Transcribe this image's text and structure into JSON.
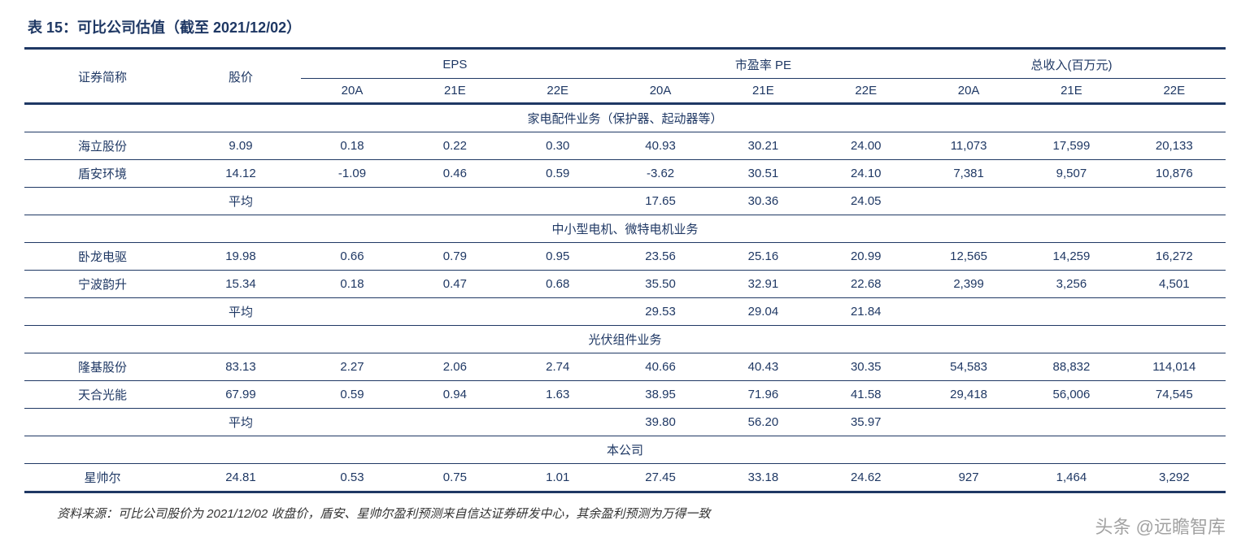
{
  "title": "表 15：可比公司估值（截至 2021/12/02）",
  "headers": {
    "name": "证券简称",
    "price": "股价",
    "eps": "EPS",
    "pe": "市盈率 PE",
    "revenue": "总收入(百万元)",
    "sub": [
      "20A",
      "21E",
      "22E"
    ]
  },
  "sections": [
    {
      "title": "家电配件业务（保护器、起动器等）",
      "rows": [
        {
          "name": "海立股份",
          "price": "9.09",
          "eps": [
            "0.18",
            "0.22",
            "0.30"
          ],
          "pe": [
            "40.93",
            "30.21",
            "24.00"
          ],
          "rev": [
            "11,073",
            "17,599",
            "20,133"
          ]
        },
        {
          "name": "盾安环境",
          "price": "14.12",
          "eps": [
            "-1.09",
            "0.46",
            "0.59"
          ],
          "pe": [
            "-3.62",
            "30.51",
            "24.10"
          ],
          "rev": [
            "7,381",
            "9,507",
            "10,876"
          ]
        }
      ],
      "avg_label": "平均",
      "avg_pe": [
        "17.65",
        "30.36",
        "24.05"
      ]
    },
    {
      "title": "中小型电机、微特电机业务",
      "rows": [
        {
          "name": "卧龙电驱",
          "price": "19.98",
          "eps": [
            "0.66",
            "0.79",
            "0.95"
          ],
          "pe": [
            "23.56",
            "25.16",
            "20.99"
          ],
          "rev": [
            "12,565",
            "14,259",
            "16,272"
          ]
        },
        {
          "name": "宁波韵升",
          "price": "15.34",
          "eps": [
            "0.18",
            "0.47",
            "0.68"
          ],
          "pe": [
            "35.50",
            "32.91",
            "22.68"
          ],
          "rev": [
            "2,399",
            "3,256",
            "4,501"
          ]
        }
      ],
      "avg_label": "平均",
      "avg_pe": [
        "29.53",
        "29.04",
        "21.84"
      ]
    },
    {
      "title": "光伏组件业务",
      "rows": [
        {
          "name": "隆基股份",
          "price": "83.13",
          "eps": [
            "2.27",
            "2.06",
            "2.74"
          ],
          "pe": [
            "40.66",
            "40.43",
            "30.35"
          ],
          "rev": [
            "54,583",
            "88,832",
            "114,014"
          ]
        },
        {
          "name": "天合光能",
          "price": "67.99",
          "eps": [
            "0.59",
            "0.94",
            "1.63"
          ],
          "pe": [
            "38.95",
            "71.96",
            "41.58"
          ],
          "rev": [
            "29,418",
            "56,006",
            "74,545"
          ]
        }
      ],
      "avg_label": "平均",
      "avg_pe": [
        "39.80",
        "56.20",
        "35.97"
      ]
    },
    {
      "title": "本公司",
      "rows": [
        {
          "name": "星帅尔",
          "price": "24.81",
          "eps": [
            "0.53",
            "0.75",
            "1.01"
          ],
          "pe": [
            "27.45",
            "33.18",
            "24.62"
          ],
          "rev": [
            "927",
            "1,464",
            "3,292"
          ]
        }
      ],
      "is_last": true
    }
  ],
  "source": "资料来源：可比公司股价为 2021/12/02 收盘价，盾安、星帅尔盈利预测来自信达证券研发中心，其余盈利预测为万得一致",
  "watermark": "头条 @远瞻智库",
  "style": {
    "title_color": "#1f3864",
    "border_color": "#1f3864",
    "text_color": "#1f3864",
    "background": "#ffffff",
    "title_fontsize": 18,
    "cell_fontsize": 15,
    "source_fontsize": 15
  }
}
